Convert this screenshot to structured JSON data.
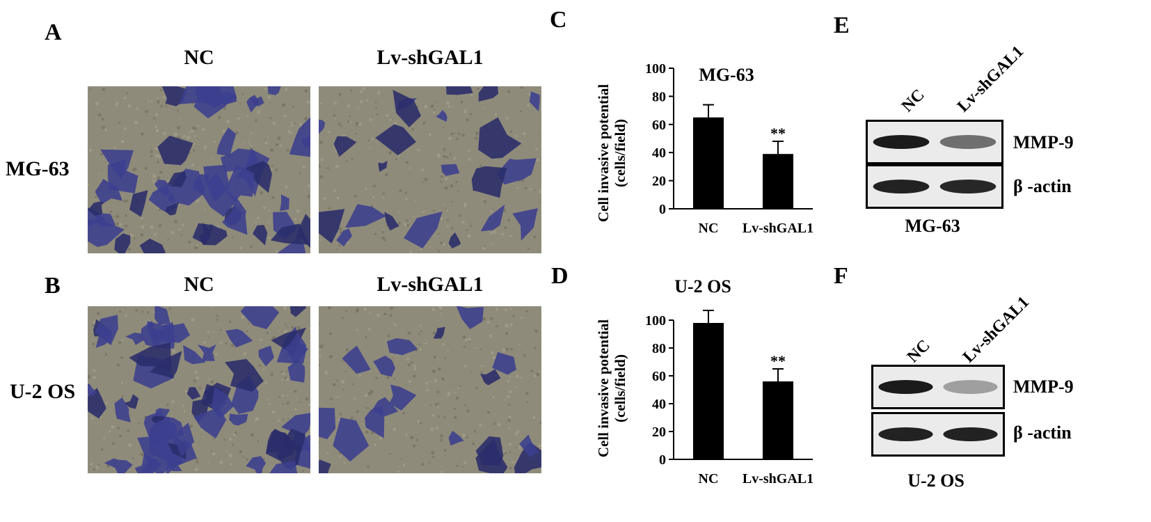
{
  "panels": {
    "A": "A",
    "B": "B",
    "C": "C",
    "D": "D",
    "E": "E",
    "F": "F"
  },
  "micrographs": {
    "row1": {
      "label": "MG-63",
      "col1": "NC",
      "col2": "Lv-shGAL1"
    },
    "row2": {
      "label": "U-2 OS",
      "col1": "NC",
      "col2": "Lv-shGAL1"
    },
    "colors": {
      "background": "#8f8b7a",
      "stain": "#3c3f8e",
      "stain_dark": "#2a2c6a"
    }
  },
  "blots": {
    "E": {
      "lanes": [
        "NC",
        "Lv-shGAL1"
      ],
      "bands": [
        "MMP-9",
        "β -actin"
      ],
      "cell_line": "MG-63"
    },
    "F": {
      "lanes": [
        "NC",
        "Lv-shGAL1"
      ],
      "bands": [
        "MMP-9",
        "β -actin"
      ],
      "cell_line": "U-2 OS"
    }
  },
  "chart_data": [
    {
      "type": "bar",
      "title": "MG-63",
      "ylabel": "Cell invasive potential (cells/field)",
      "ylabel_lines": [
        "Cell invasive potential",
        "(cells/field)"
      ],
      "categories": [
        "NC",
        "Lv-shGAL1"
      ],
      "values": [
        65,
        39
      ],
      "errors": [
        9,
        9
      ],
      "significance": [
        "",
        "**"
      ],
      "ylim": [
        0,
        100
      ],
      "yticks": [
        0,
        20,
        40,
        60,
        80,
        100
      ],
      "bar_color": "#000000"
    },
    {
      "type": "bar",
      "title": "U-2 OS",
      "ylabel": "Cell invasive potential (cells/field)",
      "ylabel_lines": [
        "Cell invasive potential",
        "(cells/field)"
      ],
      "categories": [
        "NC",
        "Lv-shGAL1"
      ],
      "values": [
        98,
        56
      ],
      "errors": [
        9,
        9
      ],
      "significance": [
        "",
        "**"
      ],
      "ylim": [
        0,
        100
      ],
      "yticks": [
        0,
        20,
        40,
        60,
        80,
        100
      ],
      "bar_color": "#000000"
    }
  ]
}
